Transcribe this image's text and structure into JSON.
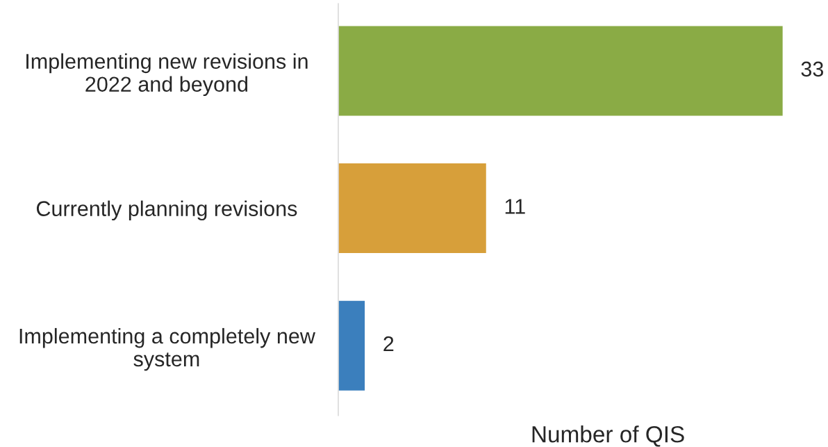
{
  "chart_data": {
    "type": "bar",
    "orientation": "horizontal",
    "categories": [
      "Implementing new revisions in 2022 and beyond",
      "Currently planning revisions",
      "Implementing a completely new system"
    ],
    "values": [
      33,
      11,
      2
    ],
    "colors": [
      "#8aab45",
      "#d79f3a",
      "#3b7fbd"
    ],
    "xlabel": "Number of QIS",
    "data_labels": true,
    "tick_labels": "y",
    "grid": false,
    "legend": false
  }
}
